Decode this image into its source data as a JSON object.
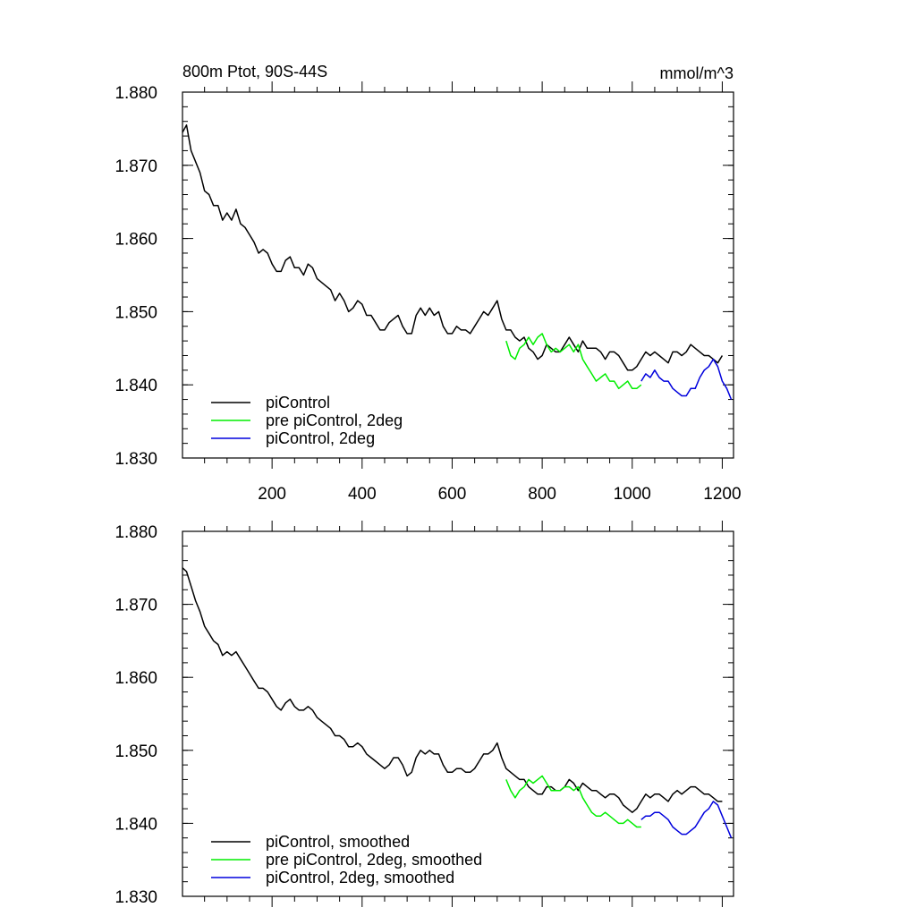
{
  "figure": {
    "title_left": "800m Ptot, 90S-44S",
    "title_right": "mmol/m^3"
  },
  "chart_data": [
    {
      "type": "line",
      "title": "800m Ptot, 90S-44S",
      "units": "mmol/m^3",
      "xlim": [
        1,
        1225
      ],
      "ylim": [
        1.83,
        1.88
      ],
      "x_ticks": [
        200,
        400,
        600,
        800,
        1000,
        1200
      ],
      "x_tick_labels": [
        "200",
        "400",
        "600",
        "800",
        "1000",
        "1200"
      ],
      "y_ticks": [
        1.83,
        1.84,
        1.85,
        1.86,
        1.87,
        1.88
      ],
      "y_tick_labels": [
        "1.830",
        "1.840",
        "1.850",
        "1.860",
        "1.870",
        "1.880"
      ],
      "legend_position": "bottom-left",
      "series": [
        {
          "name": "piControl",
          "color": "#000000",
          "x": [
            1,
            10,
            20,
            30,
            40,
            50,
            60,
            70,
            80,
            90,
            100,
            110,
            120,
            130,
            140,
            150,
            160,
            170,
            180,
            190,
            200,
            210,
            220,
            230,
            240,
            250,
            260,
            270,
            280,
            290,
            300,
            310,
            320,
            330,
            340,
            350,
            360,
            370,
            380,
            390,
            400,
            410,
            420,
            430,
            440,
            450,
            460,
            470,
            480,
            490,
            500,
            510,
            520,
            530,
            540,
            550,
            560,
            570,
            580,
            590,
            600,
            610,
            620,
            630,
            640,
            650,
            660,
            670,
            680,
            690,
            700,
            710,
            720,
            730,
            740,
            750,
            760,
            770,
            780,
            790,
            800,
            810,
            820,
            830,
            840,
            850,
            860,
            870,
            880,
            890,
            900,
            910,
            920,
            930,
            940,
            950,
            960,
            970,
            980,
            990,
            1000,
            1010,
            1020,
            1030,
            1040,
            1050,
            1060,
            1070,
            1080,
            1090,
            1100,
            1110,
            1120,
            1130,
            1140,
            1150,
            1160,
            1170,
            1180,
            1190,
            1200
          ],
          "y": [
            1.8745,
            1.8755,
            1.872,
            1.8705,
            1.869,
            1.8665,
            1.866,
            1.8645,
            1.8645,
            1.8625,
            1.8635,
            1.8625,
            1.864,
            1.862,
            1.8615,
            1.8605,
            1.8595,
            1.858,
            1.8585,
            1.858,
            1.8565,
            1.8555,
            1.8555,
            1.857,
            1.8575,
            1.856,
            1.856,
            1.855,
            1.8565,
            1.856,
            1.8545,
            1.854,
            1.8535,
            1.853,
            1.8515,
            1.8525,
            1.8515,
            1.85,
            1.8505,
            1.8515,
            1.851,
            1.8495,
            1.8495,
            1.8485,
            1.8475,
            1.8475,
            1.8485,
            1.849,
            1.8495,
            1.848,
            1.847,
            1.847,
            1.8495,
            1.8505,
            1.8495,
            1.8505,
            1.8495,
            1.85,
            1.848,
            1.847,
            1.847,
            1.848,
            1.8475,
            1.8475,
            1.847,
            1.848,
            1.849,
            1.85,
            1.8495,
            1.8505,
            1.8515,
            1.849,
            1.8475,
            1.8475,
            1.8465,
            1.846,
            1.8465,
            1.845,
            1.8445,
            1.8435,
            1.844,
            1.8455,
            1.845,
            1.8445,
            1.8445,
            1.8455,
            1.8465,
            1.8455,
            1.8445,
            1.846,
            1.845,
            1.845,
            1.845,
            1.8445,
            1.8435,
            1.8445,
            1.8445,
            1.844,
            1.843,
            1.842,
            1.842,
            1.8425,
            1.8435,
            1.8445,
            1.844,
            1.8445,
            1.844,
            1.8435,
            1.843,
            1.8445,
            1.8445,
            1.844,
            1.8445,
            1.8455,
            1.845,
            1.8445,
            1.844,
            1.844,
            1.8435,
            1.843,
            1.844
          ]
        },
        {
          "name": "pre piControl, 2deg",
          "color": "#00ee00",
          "x": [
            720,
            730,
            740,
            750,
            760,
            770,
            780,
            790,
            800,
            810,
            820,
            830,
            840,
            850,
            860,
            870,
            880,
            890,
            900,
            910,
            920,
            930,
            940,
            950,
            960,
            970,
            980,
            990,
            1000,
            1010,
            1020
          ],
          "y": [
            1.846,
            1.844,
            1.8435,
            1.845,
            1.8455,
            1.8465,
            1.8455,
            1.8465,
            1.847,
            1.8455,
            1.8445,
            1.845,
            1.8445,
            1.845,
            1.8455,
            1.8445,
            1.8455,
            1.8435,
            1.8425,
            1.8415,
            1.8405,
            1.841,
            1.8415,
            1.8405,
            1.8405,
            1.8395,
            1.84,
            1.8405,
            1.8395,
            1.8395,
            1.84
          ]
        },
        {
          "name": "piControl, 2deg",
          "color": "#0000dd",
          "x": [
            1020,
            1030,
            1040,
            1050,
            1060,
            1070,
            1080,
            1090,
            1100,
            1110,
            1120,
            1130,
            1140,
            1150,
            1160,
            1170,
            1180,
            1190,
            1200,
            1210,
            1220
          ],
          "y": [
            1.8405,
            1.8415,
            1.841,
            1.842,
            1.841,
            1.8405,
            1.8405,
            1.8395,
            1.839,
            1.8385,
            1.8385,
            1.8395,
            1.8395,
            1.841,
            1.842,
            1.8425,
            1.8435,
            1.8425,
            1.8405,
            1.8395,
            1.838
          ]
        }
      ]
    },
    {
      "type": "line",
      "xlim": [
        1,
        1225
      ],
      "ylim": [
        1.83,
        1.88
      ],
      "x_ticks": [
        200,
        400,
        600,
        800,
        1000,
        1200
      ],
      "y_ticks": [
        1.83,
        1.84,
        1.85,
        1.86,
        1.87,
        1.88
      ],
      "y_tick_labels": [
        "1.830",
        "1.840",
        "1.850",
        "1.860",
        "1.870",
        "1.880"
      ],
      "legend_position": "bottom-left",
      "series": [
        {
          "name": "piControl, smoothed",
          "color": "#000000",
          "x": [
            1,
            10,
            20,
            30,
            40,
            50,
            60,
            70,
            80,
            90,
            100,
            110,
            120,
            130,
            140,
            150,
            160,
            170,
            180,
            190,
            200,
            210,
            220,
            230,
            240,
            250,
            260,
            270,
            280,
            290,
            300,
            310,
            320,
            330,
            340,
            350,
            360,
            370,
            380,
            390,
            400,
            410,
            420,
            430,
            440,
            450,
            460,
            470,
            480,
            490,
            500,
            510,
            520,
            530,
            540,
            550,
            560,
            570,
            580,
            590,
            600,
            610,
            620,
            630,
            640,
            650,
            660,
            670,
            680,
            690,
            700,
            710,
            720,
            730,
            740,
            750,
            760,
            770,
            780,
            790,
            800,
            810,
            820,
            830,
            840,
            850,
            860,
            870,
            880,
            890,
            900,
            910,
            920,
            930,
            940,
            950,
            960,
            970,
            980,
            990,
            1000,
            1010,
            1020,
            1030,
            1040,
            1050,
            1060,
            1070,
            1080,
            1090,
            1100,
            1110,
            1120,
            1130,
            1140,
            1150,
            1160,
            1170,
            1180,
            1190,
            1200
          ],
          "y": [
            1.875,
            1.8745,
            1.8725,
            1.8705,
            1.869,
            1.867,
            1.866,
            1.865,
            1.8645,
            1.863,
            1.8635,
            1.863,
            1.8635,
            1.8625,
            1.8615,
            1.8605,
            1.8595,
            1.8585,
            1.8585,
            1.858,
            1.857,
            1.856,
            1.8555,
            1.8565,
            1.857,
            1.856,
            1.8555,
            1.8555,
            1.856,
            1.8555,
            1.8545,
            1.854,
            1.8535,
            1.853,
            1.852,
            1.852,
            1.8515,
            1.8505,
            1.8505,
            1.851,
            1.8505,
            1.8495,
            1.849,
            1.8485,
            1.848,
            1.8475,
            1.848,
            1.849,
            1.849,
            1.848,
            1.8465,
            1.847,
            1.849,
            1.85,
            1.8495,
            1.85,
            1.8495,
            1.8495,
            1.848,
            1.847,
            1.847,
            1.8475,
            1.8475,
            1.847,
            1.847,
            1.8475,
            1.8485,
            1.8495,
            1.8495,
            1.85,
            1.851,
            1.849,
            1.8475,
            1.847,
            1.8465,
            1.846,
            1.846,
            1.845,
            1.8445,
            1.844,
            1.844,
            1.845,
            1.845,
            1.8445,
            1.8445,
            1.845,
            1.846,
            1.8455,
            1.8445,
            1.8455,
            1.845,
            1.8445,
            1.8445,
            1.844,
            1.8435,
            1.844,
            1.844,
            1.8435,
            1.8425,
            1.842,
            1.8415,
            1.842,
            1.843,
            1.844,
            1.8435,
            1.844,
            1.844,
            1.8435,
            1.843,
            1.844,
            1.8445,
            1.844,
            1.8445,
            1.845,
            1.845,
            1.8445,
            1.844,
            1.844,
            1.8435,
            1.843,
            1.843
          ]
        },
        {
          "name": "pre piControl, 2deg, smoothed",
          "color": "#00ee00",
          "x": [
            720,
            730,
            740,
            750,
            760,
            770,
            780,
            790,
            800,
            810,
            820,
            830,
            840,
            850,
            860,
            870,
            880,
            890,
            900,
            910,
            920,
            930,
            940,
            950,
            960,
            970,
            980,
            990,
            1000,
            1010,
            1020
          ],
          "y": [
            1.846,
            1.8445,
            1.8435,
            1.8445,
            1.845,
            1.846,
            1.8455,
            1.846,
            1.8465,
            1.8455,
            1.8445,
            1.8445,
            1.8445,
            1.845,
            1.845,
            1.8445,
            1.845,
            1.8435,
            1.8425,
            1.8415,
            1.841,
            1.841,
            1.8415,
            1.841,
            1.8405,
            1.84,
            1.84,
            1.8405,
            1.84,
            1.8395,
            1.8395
          ]
        },
        {
          "name": "piControl, 2deg, smoothed",
          "color": "#0000dd",
          "x": [
            1020,
            1030,
            1040,
            1050,
            1060,
            1070,
            1080,
            1090,
            1100,
            1110,
            1120,
            1130,
            1140,
            1150,
            1160,
            1170,
            1180,
            1190,
            1200,
            1210,
            1220
          ],
          "y": [
            1.8405,
            1.841,
            1.841,
            1.8415,
            1.8415,
            1.841,
            1.8405,
            1.8395,
            1.839,
            1.8385,
            1.8385,
            1.839,
            1.8395,
            1.8405,
            1.8415,
            1.842,
            1.843,
            1.8425,
            1.841,
            1.8395,
            1.838
          ]
        }
      ]
    }
  ]
}
